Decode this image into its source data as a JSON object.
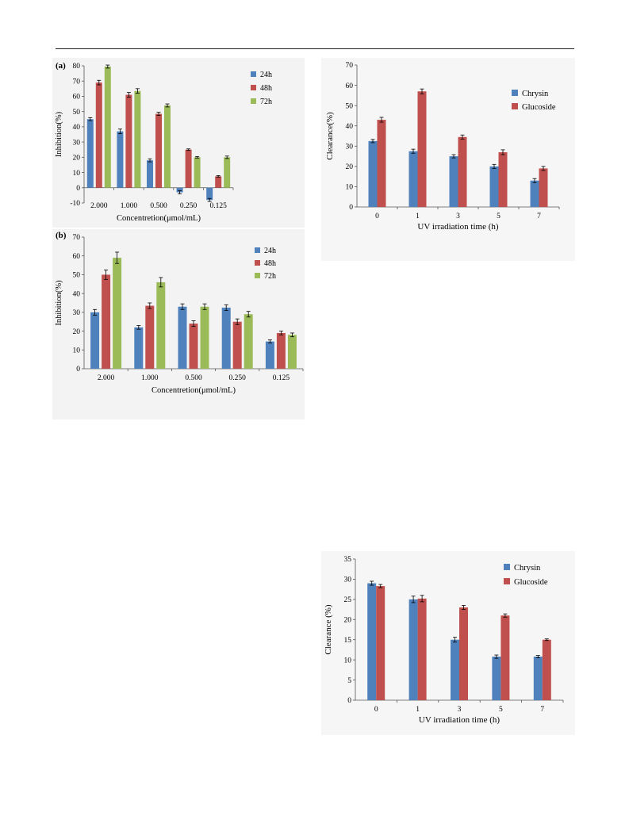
{
  "colors": {
    "series_blue": "#4f81bd",
    "series_red": "#c0504d",
    "series_green": "#9bbb59"
  },
  "chart_data": [
    {
      "id": "a",
      "panel_label": "(a)",
      "type": "bar",
      "xlabel": "Concentretion(μmol/mL)",
      "ylabel": "Inhibition(%)",
      "ylim": [
        -10,
        80
      ],
      "yticks": [
        -10,
        0,
        10,
        20,
        30,
        40,
        50,
        60,
        70,
        80
      ],
      "categories": [
        "2.000",
        "1.000",
        "0.500",
        "0.250",
        "0.125"
      ],
      "legend_position": "top-right",
      "series": [
        {
          "name": "24h",
          "color": "#4f81bd",
          "values": [
            45,
            37,
            18,
            -3,
            -8
          ],
          "errors": [
            1,
            1.5,
            1,
            1,
            1
          ]
        },
        {
          "name": "48h",
          "color": "#c0504d",
          "values": [
            69,
            61,
            48.5,
            25,
            7.5
          ],
          "errors": [
            1.5,
            1.5,
            1,
            0.5,
            0.5
          ]
        },
        {
          "name": "72h",
          "color": "#9bbb59",
          "values": [
            79.5,
            63.5,
            54,
            20,
            20
          ],
          "errors": [
            1,
            1.5,
            1,
            0.5,
            0.8
          ]
        }
      ]
    },
    {
      "id": "b",
      "panel_label": "(b)",
      "type": "bar",
      "xlabel": "Concentretion(μmol/mL)",
      "ylabel": "Inhibition(%)",
      "ylim": [
        0,
        70
      ],
      "yticks": [
        0,
        10,
        20,
        30,
        40,
        50,
        60,
        70
      ],
      "categories": [
        "2.000",
        "1.000",
        "0.500",
        "0.250",
        "0.125"
      ],
      "legend_position": "top-right",
      "series": [
        {
          "name": "24h",
          "color": "#4f81bd",
          "values": [
            30,
            22,
            33,
            32.5,
            14.5
          ],
          "errors": [
            1.5,
            1,
            1.5,
            1.5,
            0.8
          ]
        },
        {
          "name": "48h",
          "color": "#c0504d",
          "values": [
            50,
            33.5,
            24,
            25,
            19
          ],
          "errors": [
            2.5,
            1.5,
            1.5,
            1.5,
            1
          ]
        },
        {
          "name": "72h",
          "color": "#9bbb59",
          "values": [
            59,
            46,
            33,
            29,
            18
          ],
          "errors": [
            3,
            2.5,
            1.5,
            1.5,
            1
          ]
        }
      ]
    },
    {
      "id": "c",
      "type": "bar",
      "xlabel": "UV irradiation time (h)",
      "ylabel": "Clearance(%)",
      "ylim": [
        0,
        70
      ],
      "yticks": [
        0,
        10,
        20,
        30,
        40,
        50,
        60,
        70
      ],
      "categories": [
        "0",
        "1",
        "3",
        "5",
        "7"
      ],
      "legend_position": "top-right",
      "series": [
        {
          "name": "Chrysin",
          "color": "#4f81bd",
          "values": [
            32.5,
            27.5,
            25,
            20,
            13
          ],
          "errors": [
            0.8,
            1,
            0.8,
            1,
            1
          ]
        },
        {
          "name": "Glucoside",
          "color": "#c0504d",
          "values": [
            43,
            57,
            34.5,
            27,
            19
          ],
          "errors": [
            1.2,
            1.2,
            1,
            1.2,
            1
          ]
        }
      ]
    },
    {
      "id": "d",
      "type": "bar",
      "xlabel": "UV irradiation time (h)",
      "ylabel": "Clearance (%)",
      "ylim": [
        0,
        35
      ],
      "yticks": [
        0,
        5,
        10,
        15,
        20,
        25,
        30,
        35
      ],
      "categories": [
        "0",
        "1",
        "3",
        "5",
        "7"
      ],
      "legend_position": "top-right",
      "series": [
        {
          "name": "Chrysin",
          "color": "#4f81bd",
          "values": [
            29,
            25,
            15,
            10.8,
            10.8
          ],
          "errors": [
            0.5,
            0.8,
            0.6,
            0.4,
            0.3
          ]
        },
        {
          "name": "Glucoside",
          "color": "#c0504d",
          "values": [
            28.3,
            25.2,
            23,
            21,
            15
          ],
          "errors": [
            0.4,
            0.8,
            0.5,
            0.4,
            0.2
          ]
        }
      ]
    }
  ]
}
